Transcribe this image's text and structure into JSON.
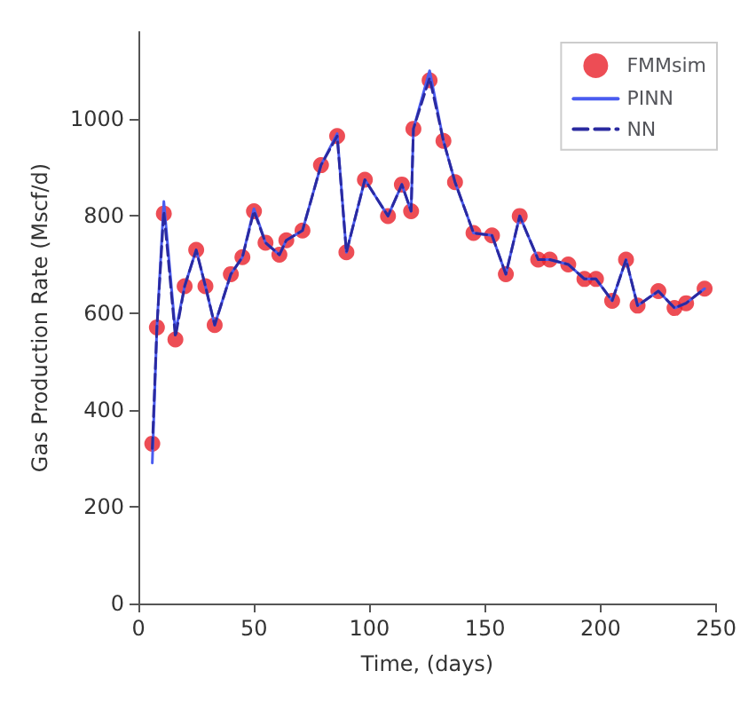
{
  "chart_data": {
    "type": "line",
    "xlabel": "Time, (days)",
    "ylabel": "Gas Production Rate (Mscf/d)",
    "xlim": [
      0,
      250
    ],
    "xticks": [
      0,
      50,
      100,
      150,
      200,
      250
    ],
    "ylim": [
      0,
      1180
    ],
    "yticks": [
      0,
      200,
      400,
      600,
      800,
      1000
    ],
    "grid": false,
    "legend": "top right",
    "x": [
      6,
      8,
      11,
      16,
      20,
      25,
      29,
      33,
      40,
      45,
      50,
      55,
      61,
      64,
      71,
      79,
      86,
      90,
      98,
      108,
      114,
      118,
      119,
      126,
      132,
      137,
      145,
      153,
      159,
      165,
      173,
      178,
      186,
      193,
      198,
      205,
      211,
      216,
      225,
      232,
      237,
      245
    ],
    "series": [
      {
        "name": "FMMsim",
        "type": "scatter",
        "marker": "circle",
        "color": "#e8202a",
        "values": [
          330,
          570,
          805,
          545,
          655,
          730,
          655,
          575,
          680,
          715,
          810,
          745,
          720,
          750,
          770,
          905,
          965,
          725,
          875,
          800,
          865,
          810,
          980,
          1080,
          955,
          870,
          765,
          760,
          680,
          800,
          710,
          710,
          700,
          670,
          670,
          625,
          710,
          615,
          645,
          610,
          620,
          650
        ]
      },
      {
        "name": "PINN",
        "line_style": "solid",
        "color": "#4a5cf0",
        "values": [
          290,
          570,
          830,
          560,
          655,
          730,
          655,
          575,
          680,
          715,
          815,
          745,
          720,
          750,
          770,
          905,
          970,
          725,
          875,
          800,
          865,
          810,
          980,
          1100,
          955,
          870,
          765,
          760,
          680,
          800,
          710,
          710,
          700,
          670,
          670,
          625,
          710,
          615,
          645,
          610,
          620,
          650
        ]
      },
      {
        "name": "NN",
        "line_style": "dashed",
        "color": "#2a2aa0",
        "values": [
          320,
          570,
          810,
          550,
          655,
          730,
          655,
          575,
          680,
          715,
          810,
          745,
          720,
          750,
          770,
          905,
          965,
          725,
          875,
          800,
          865,
          810,
          980,
          1085,
          955,
          870,
          765,
          760,
          680,
          800,
          710,
          710,
          700,
          670,
          670,
          625,
          710,
          615,
          645,
          610,
          620,
          650
        ]
      }
    ]
  }
}
